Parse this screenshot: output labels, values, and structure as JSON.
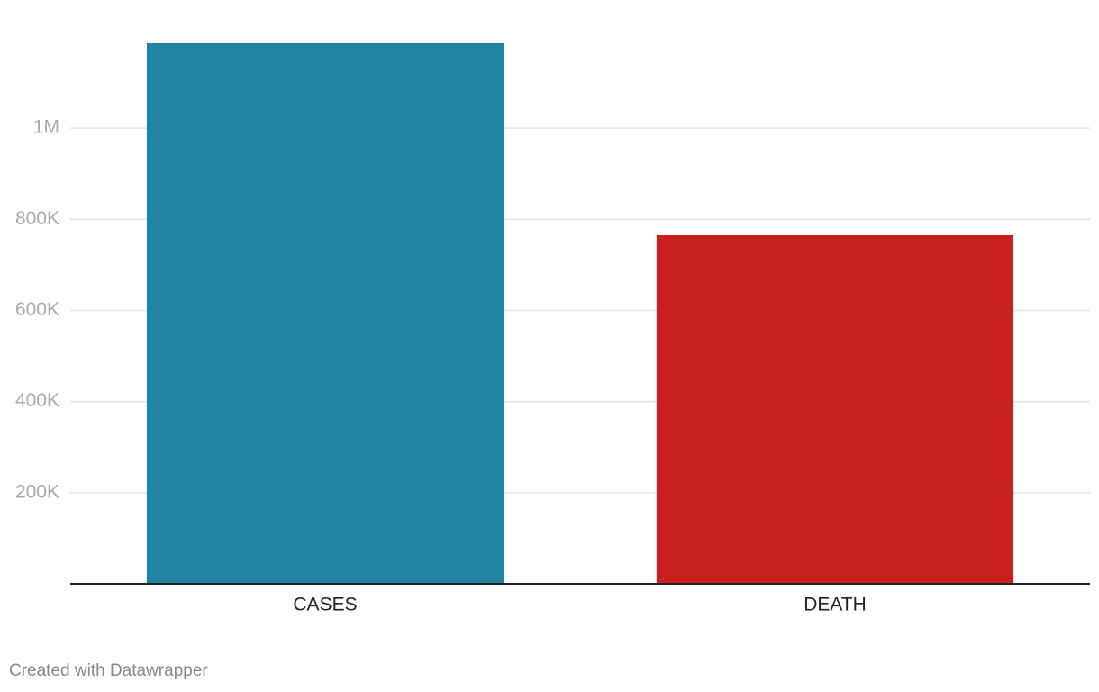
{
  "chart_data": {
    "type": "bar",
    "categories": [
      "CASES",
      "DEATH"
    ],
    "values": [
      1186000,
      765000
    ],
    "colors": [
      "#1f83a1",
      "#c91f1f"
    ],
    "ylim": [
      0,
      1186000
    ],
    "yticks": [
      {
        "value": 200000,
        "label": "200K"
      },
      {
        "value": 400000,
        "label": "400K"
      },
      {
        "value": 600000,
        "label": "600K"
      },
      {
        "value": 800000,
        "label": "800K"
      },
      {
        "value": 1000000,
        "label": "1M"
      }
    ],
    "grid": true,
    "credit": "Created with Datawrapper"
  }
}
